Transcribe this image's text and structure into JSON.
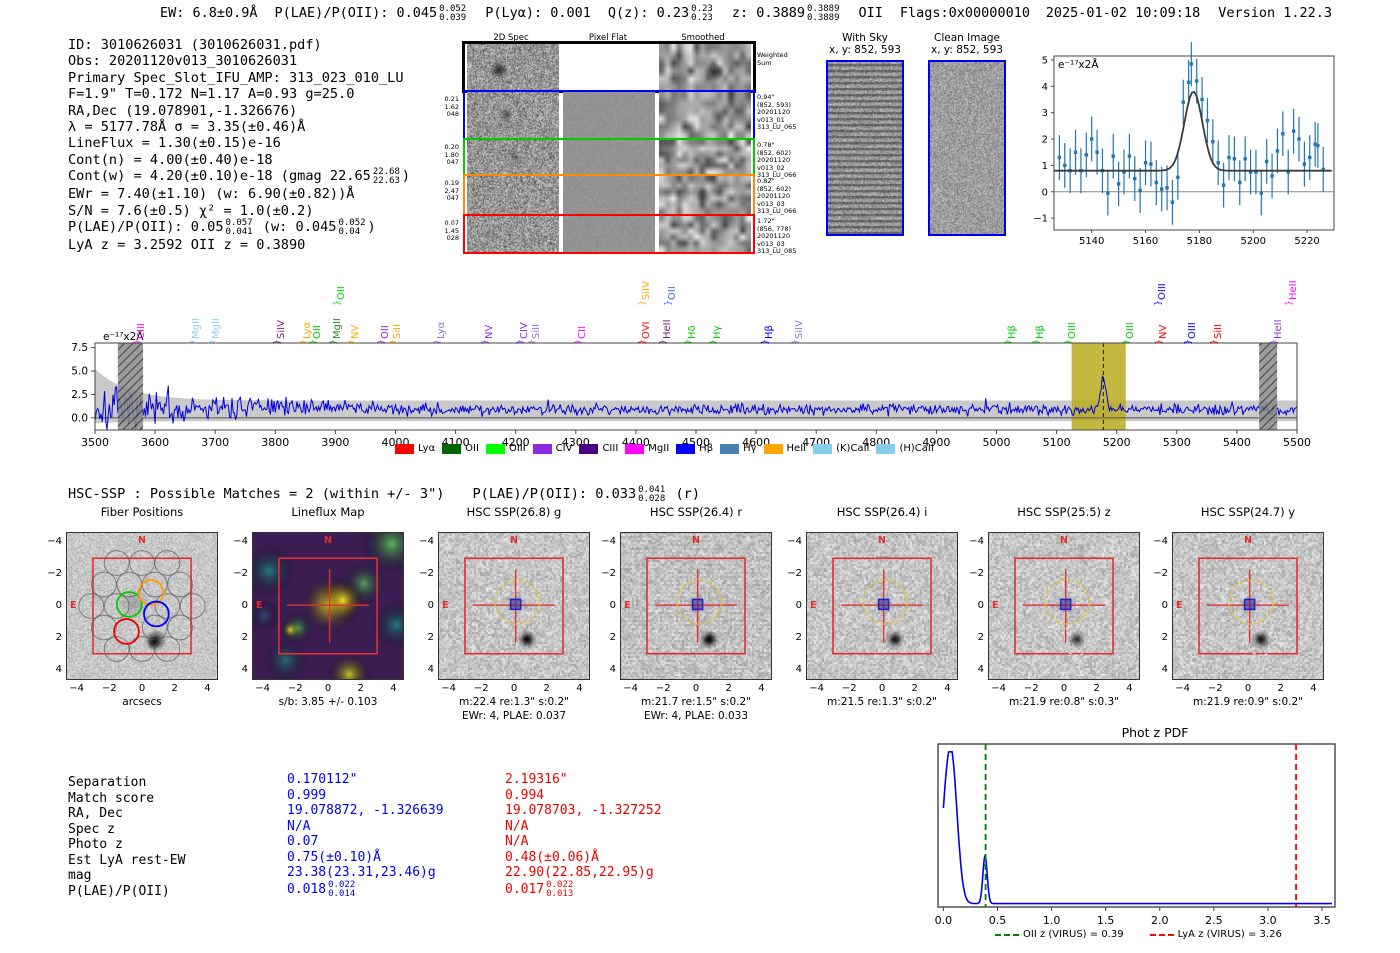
{
  "header": {
    "parts": [
      {
        "t": "EW: 6.8±0.9Å"
      },
      {
        "t": "P(LAE)/P(OII): 0.045",
        "sup": "0.052",
        "sub": "0.039"
      },
      {
        "t": "P(Lyα): 0.001"
      },
      {
        "t": "Q(z): 0.23",
        "sup": "0.23",
        "sub": "0.23"
      },
      {
        "t": "z: 0.3889",
        "sup": "0.3889",
        "sub": "0.3889"
      },
      {
        "t": "OII"
      },
      {
        "t": "Flags:0x00000010"
      }
    ],
    "timestamp": "2025-01-02 10:09:18",
    "version": "Version 1.22.3"
  },
  "info": {
    "lines": [
      [
        {
          "t": "ID: 3010626031 (3010626031.pdf)"
        }
      ],
      [
        {
          "t": "Obs: 20201120v013_3010626031"
        }
      ],
      [
        {
          "t": "Primary Spec_Slot_IFU_AMP: 313_023_010_LU"
        }
      ],
      [
        {
          "t": "F=1.9\"  T=0.172  N=1.17  A=0.93  g=25.0"
        }
      ],
      [
        {
          "t": "RA,Dec (19.078901,-1.326676)"
        }
      ],
      [
        {
          "t": "λ = 5177.78Å  σ = 3.35(±0.46)Å"
        }
      ],
      [
        {
          "t": "LineFlux = 1.30(±0.15)e-16"
        }
      ],
      [
        {
          "t": "Cont(n) = 4.00(±0.40)e-18"
        }
      ],
      [
        {
          "t": "Cont(w) = 4.20(±0.10)e-18 (gmag 22.65"
        },
        {
          "sup": "22.68",
          "sub": "22.63"
        },
        {
          "t": ")"
        }
      ],
      [
        {
          "t": "EWr = 7.40(±1.10) (w: 6.90(±0.82))Å"
        }
      ],
      [
        {
          "t": "S/N = 7.6(±0.5)  χ² = 1.0(±0.2)"
        }
      ],
      [
        {
          "t": "P(LAE)/P(OII): 0.05"
        },
        {
          "sup": "0.057",
          "sub": "0.041"
        },
        {
          "t": " (w: 0.045"
        },
        {
          "sup": "0.052",
          "sub": "0.04"
        },
        {
          "t": ")"
        }
      ],
      [
        {
          "t": "LyA z = 3.2592  OII z = 0.3890"
        }
      ]
    ]
  },
  "spec2d": {
    "col_titles": [
      "2D Spec",
      "Pixel Flat",
      "Smoothed"
    ],
    "rows": [
      {
        "border": "#000000",
        "left": [],
        "right": [
          "Weighted",
          "Sum"
        ]
      },
      {
        "border": "#0000ff",
        "left": [
          "0.21",
          "1.62",
          "048"
        ],
        "right": [
          "0.94\"",
          "(852, 593)",
          "20201120",
          "v013_01",
          "313_LU_065"
        ]
      },
      {
        "border": "#00cc00",
        "left": [
          "0.20",
          "1.80",
          "047"
        ],
        "right": [
          "0.78\"",
          "(852, 602)",
          "20201120",
          "v013_02",
          "313_LU_066"
        ]
      },
      {
        "border": "#ff8c00",
        "left": [
          "0.19",
          "2.47",
          "047"
        ],
        "right": [
          "0.82\"",
          "(852, 602)",
          "20201120",
          "v013_03",
          "313_LU_066"
        ]
      },
      {
        "border": "#ff0000",
        "left": [
          "0.07",
          "1.45",
          "028"
        ],
        "right": [
          "1.72\"",
          "(856, 778)",
          "20201120",
          "v013_03",
          "313_LU_085"
        ]
      }
    ]
  },
  "sky_panels": [
    {
      "title": "With Sky",
      "coords": "x, y: 852, 593"
    },
    {
      "title": "Clean Image",
      "coords": "x, y: 852, 593"
    }
  ],
  "hsc_match": {
    "text": "HSC-SSP : Possible Matches = 2 (within +/- 3\")",
    "plae": {
      "t": "P(LAE)/P(OII): 0.033",
      "sup": "0.041",
      "sub": "0.028"
    },
    "suffix": "(r)"
  },
  "cutouts": {
    "ticks": [
      "−4",
      "−2",
      "0",
      "2",
      "4"
    ],
    "compass": {
      "north": "N",
      "east": "E"
    },
    "panels": [
      {
        "title": "Fiber Positions",
        "xlabel": "arcsecs",
        "type": "fiber"
      },
      {
        "title": "Lineflux Map",
        "xlabel": "s/b: 3.85 +/- 0.103",
        "type": "lineflux"
      },
      {
        "title": "HSC SSP(26.8) g",
        "xlabel": "m:22.4  re:1.3\"  s:0.2\"",
        "xlabel2": "EWr: 4, PLAE: 0.037",
        "type": "hsc"
      },
      {
        "title": "HSC SSP(26.4) r",
        "xlabel": "m:21.7  re:1.5\"  s:0.2\"",
        "xlabel2": "EWr: 4, PLAE: 0.033",
        "type": "hsc"
      },
      {
        "title": "HSC SSP(26.4) i",
        "xlabel": "m:21.5  re:1.3\"  s:0.2\"",
        "type": "hsc"
      },
      {
        "title": "HSC SSP(25.5) z",
        "xlabel": "m:21.9  re:0.8\"  s:0.3\"",
        "type": "hsc"
      },
      {
        "title": "HSC SSP(24.7) y",
        "xlabel": "m:21.9  re:0.9\"  s:0.2\"",
        "type": "hsc"
      }
    ]
  },
  "match_table": {
    "rows": [
      {
        "label": "Separation",
        "blue": {
          "t": "0.170112\""
        },
        "red": {
          "t": "2.19316\""
        }
      },
      {
        "label": "Match score",
        "blue": {
          "t": "0.999"
        },
        "red": {
          "t": "0.994"
        }
      },
      {
        "label": "RA, Dec",
        "blue": {
          "t": "19.078872, -1.326639"
        },
        "red": {
          "t": "19.078703, -1.327252"
        }
      },
      {
        "label": "Spec z",
        "blue": {
          "t": "N/A"
        },
        "red": {
          "t": "N/A"
        }
      },
      {
        "label": "Photo z",
        "blue": {
          "t": "0.07"
        },
        "red": {
          "t": "N/A"
        }
      },
      {
        "label": "Est LyA rest-EW",
        "blue": {
          "t": "0.75(±0.10)Å"
        },
        "red": {
          "t": "0.48(±0.06)Å"
        }
      },
      {
        "label": "mag",
        "blue": {
          "t": "23.38(23.31,23.46)g"
        },
        "red": {
          "t": "22.90(22.85,22.95)g"
        }
      },
      {
        "label": "P(LAE)/P(OII)",
        "blue": {
          "t": "0.018",
          "sup": "0.022",
          "sub": "0.014"
        },
        "red": {
          "t": "0.017",
          "sup": "0.022",
          "sub": "0.013"
        }
      }
    ],
    "blue_color": "#0000ee",
    "red_color": "#ee0000"
  },
  "chart_data": [
    {
      "name": "zoom_spectrum",
      "type": "scatter",
      "unit_label": "e⁻¹⁷x2Å",
      "xticks": [
        5140,
        5160,
        5180,
        5200,
        5220
      ],
      "yticks": [
        -1,
        0,
        1,
        2,
        3,
        4,
        5
      ],
      "xlim": [
        5126,
        5230
      ],
      "ylim": [
        -1.45,
        5.15
      ],
      "err": 0.85,
      "fit": {
        "baseline": 0.8,
        "amplitude": 3.0,
        "center": 5177.78,
        "sigma": 3.35
      },
      "points": [
        [
          5128,
          1.3
        ],
        [
          5130,
          1.0
        ],
        [
          5132,
          0.8
        ],
        [
          5134,
          1.5
        ],
        [
          5136,
          0.8
        ],
        [
          5138,
          1.4
        ],
        [
          5140,
          2.0
        ],
        [
          5142,
          1.5
        ],
        [
          5144,
          0.8
        ],
        [
          5146,
          -0.05
        ],
        [
          5148,
          1.35
        ],
        [
          5150,
          0.3
        ],
        [
          5152,
          0.75
        ],
        [
          5154,
          1.35
        ],
        [
          5156,
          0.5
        ],
        [
          5158,
          0.05
        ],
        [
          5160,
          1.1
        ],
        [
          5162,
          1.05
        ],
        [
          5164,
          0.35
        ],
        [
          5166,
          0.1
        ],
        [
          5168,
          0.15
        ],
        [
          5170,
          -0.4
        ],
        [
          5172,
          0.55
        ],
        [
          5174,
          3.4
        ],
        [
          5176,
          4.15
        ],
        [
          5177,
          4.85
        ],
        [
          5179,
          4.2
        ],
        [
          5181,
          3.5
        ],
        [
          5183,
          2.7
        ],
        [
          5185,
          1.9
        ],
        [
          5187,
          1.1
        ],
        [
          5189,
          0.25
        ],
        [
          5191,
          1.3
        ],
        [
          5193,
          1.25
        ],
        [
          5195,
          0.35
        ],
        [
          5197,
          1.25
        ],
        [
          5199,
          0.75
        ],
        [
          5201,
          0.75
        ],
        [
          5203,
          -0.05
        ],
        [
          5205,
          1.15
        ],
        [
          5207,
          0.6
        ],
        [
          5209,
          1.55
        ],
        [
          5211,
          2.2
        ],
        [
          5213,
          0.75
        ],
        [
          5215,
          2.3
        ],
        [
          5217,
          2.0
        ],
        [
          5219,
          1.05
        ],
        [
          5221,
          1.3
        ],
        [
          5223,
          1.8
        ],
        [
          5224,
          1.75
        ],
        [
          5226,
          0.85
        ]
      ]
    },
    {
      "name": "full_spectrum",
      "type": "line",
      "unit_label": "e⁻¹⁷x2Å",
      "xlim": [
        3500,
        5500
      ],
      "xticks": [
        3500,
        3600,
        3700,
        3800,
        3900,
        4000,
        4100,
        4200,
        4300,
        4400,
        4500,
        4600,
        4700,
        4800,
        4900,
        5000,
        5100,
        5200,
        5300,
        5400,
        5500
      ],
      "yticks": [
        0.0,
        2.5,
        5.0,
        7.5
      ],
      "baseline": 0.9,
      "emission_line": {
        "wl": 5177.78,
        "amplitude": 3.3,
        "sigma": 4.2
      },
      "highlight_band": {
        "from": 5125,
        "to": 5215,
        "color": "#b8ab1e"
      },
      "hatched_bands": [
        [
          3538,
          3580
        ],
        [
          5437,
          5467
        ]
      ],
      "annotations": [
        {
          "wl": 3572,
          "label": "CIII",
          "color": "#ff00ff",
          "tier": 0
        },
        {
          "wl": 3663,
          "label": "MgII",
          "color": "#87cefa",
          "tier": 0
        },
        {
          "wl": 3697,
          "label": "MgII",
          "color": "#87cefa",
          "tier": 0
        },
        {
          "wl": 3805,
          "label": "SiIV",
          "color": "#7a1f7a",
          "tier": 0
        },
        {
          "wl": 3847,
          "label": "Lyα",
          "color": "#ffa500",
          "tier": 0
        },
        {
          "wl": 3865,
          "label": "OII",
          "color": "#00cc00",
          "tier": 0
        },
        {
          "wl": 3897,
          "label": "MgII",
          "color": "#2e8b2e",
          "tier": 0
        },
        {
          "wl": 3905,
          "label": "OII",
          "color": "#00dd00",
          "tier": 1
        },
        {
          "wl": 3928,
          "label": "NV",
          "color": "#ffa500",
          "tier": 0
        },
        {
          "wl": 3978,
          "label": "OII",
          "color": "#8a2be2",
          "tier": 0
        },
        {
          "wl": 3997,
          "label": "SiII",
          "color": "#ffa500",
          "tier": 0
        },
        {
          "wl": 4070,
          "label": "Lyα",
          "color": "#9370db",
          "tier": 0
        },
        {
          "wl": 4150,
          "label": "NV",
          "color": "#8a2be2",
          "tier": 0
        },
        {
          "wl": 4208,
          "label": "CIV",
          "color": "#8a2be2",
          "tier": 0
        },
        {
          "wl": 4228,
          "label": "SiII",
          "color": "#9370db",
          "tier": 0
        },
        {
          "wl": 4305,
          "label": "CII",
          "color": "#ff00ff",
          "tier": 0
        },
        {
          "wl": 4412,
          "label": "OVI",
          "color": "#ff0000",
          "tier": 0
        },
        {
          "wl": 4412,
          "label": "SiIV",
          "color": "#ffa500",
          "tier": 1
        },
        {
          "wl": 4447,
          "label": "HeII",
          "color": "#7a1f7a",
          "tier": 0
        },
        {
          "wl": 4455,
          "label": "OII",
          "color": "#4169e1",
          "tier": 1
        },
        {
          "wl": 4488,
          "label": "Hδ",
          "color": "#00cc00",
          "tier": 0
        },
        {
          "wl": 4530,
          "label": "Hγ",
          "color": "#00cc00",
          "tier": 0
        },
        {
          "wl": 4617,
          "label": "Hβ",
          "color": "#0000ff",
          "tier": 0
        },
        {
          "wl": 4667,
          "label": "SiIV",
          "color": "#9370db",
          "tier": 0
        },
        {
          "wl": 5020,
          "label": "Hβ",
          "color": "#00cc00",
          "tier": 0
        },
        {
          "wl": 5067,
          "label": "Hβ",
          "color": "#00cc00",
          "tier": 0
        },
        {
          "wl": 5120,
          "label": "OIII",
          "color": "#00cc00",
          "tier": 0
        },
        {
          "wl": 5217,
          "label": "OIII",
          "color": "#00cc00",
          "tier": 0
        },
        {
          "wl": 5270,
          "label": "OIII",
          "color": "#0000ff",
          "tier": 1
        },
        {
          "wl": 5272,
          "label": "NV",
          "color": "#ff0000",
          "tier": 0
        },
        {
          "wl": 5320,
          "label": "OIII",
          "color": "#0000ff",
          "tier": 0
        },
        {
          "wl": 5363,
          "label": "SiII",
          "color": "#ff0000",
          "tier": 0
        },
        {
          "wl": 5463,
          "label": "HeII",
          "color": "#9932cc",
          "tier": 0
        },
        {
          "wl": 5488,
          "label": "HeII",
          "color": "#ff00ff",
          "tier": 1
        }
      ],
      "legend": [
        {
          "label": "Lyα",
          "color": "#ff0000"
        },
        {
          "label": "OII",
          "color": "#006400"
        },
        {
          "label": "OIII",
          "color": "#00ff00"
        },
        {
          "label": "CIV",
          "color": "#8a2be2"
        },
        {
          "label": "CIII",
          "color": "#4b0082"
        },
        {
          "label": "MgII",
          "color": "#ff00ff"
        },
        {
          "label": "Hβ",
          "color": "#0000ff"
        },
        {
          "label": "Hγ",
          "color": "#4682b4"
        },
        {
          "label": "HeII",
          "color": "#ffa500"
        },
        {
          "label": "(K)CaII",
          "color": "#87ceeb"
        },
        {
          "label": "(H)CaII",
          "color": "#87ceeb"
        }
      ]
    },
    {
      "name": "phot_z_pdf",
      "type": "line",
      "title": "Phot z PDF",
      "xticks": [
        "0.0",
        "0.5",
        "1.0",
        "1.5",
        "2.0",
        "2.5",
        "3.0",
        "3.5"
      ],
      "xlim": [
        -0.05,
        3.62
      ],
      "floor": 0.022,
      "curve_peaks": [
        {
          "z": 0.07,
          "height": 0.98,
          "sigma": 0.055
        },
        {
          "z": 0.385,
          "height": 0.31,
          "sigma": 0.02
        }
      ],
      "vlines": [
        {
          "z": 0.39,
          "color": "#008000",
          "style": "dashed"
        },
        {
          "z": 3.26,
          "color": "#ff0000",
          "style": "dashed"
        }
      ],
      "legend": [
        {
          "label": "OII z (VIRUS) = 0.39",
          "color": "#008000"
        },
        {
          "label": "LyA z (VIRUS) = 3.26",
          "color": "#ff0000"
        }
      ]
    }
  ]
}
